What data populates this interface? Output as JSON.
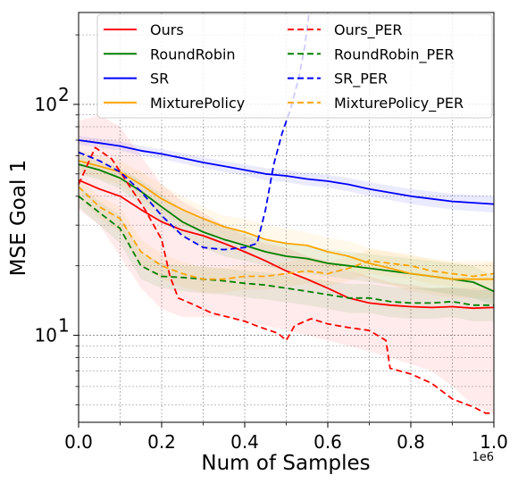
{
  "chart_data": {
    "type": "line",
    "xlabel": "Num of Samples",
    "ylabel": "MSE Goal 1",
    "x_offset_label": "1e6",
    "xlim": [
      0,
      1000000
    ],
    "ylim": [
      4.2,
      250
    ],
    "yscale": "log",
    "grid": true,
    "legend_position": "top",
    "x_ticks": [
      {
        "value": 0,
        "label": "0.0"
      },
      {
        "value": 200000,
        "label": "0.2"
      },
      {
        "value": 400000,
        "label": "0.4"
      },
      {
        "value": 600000,
        "label": "0.6"
      },
      {
        "value": 800000,
        "label": "0.8"
      },
      {
        "value": 1000000,
        "label": "1.0"
      }
    ],
    "y_ticks": [
      {
        "value": 10,
        "base": "10",
        "exp": "1"
      },
      {
        "value": 100,
        "base": "10",
        "exp": "2"
      }
    ],
    "series": [
      {
        "name": "Ours",
        "color": "#ff0000",
        "dash": "solid",
        "x": [
          0,
          50000,
          100000,
          150000,
          200000,
          250000,
          300000,
          350000,
          400000,
          450000,
          500000,
          550000,
          600000,
          650000,
          700000,
          750000,
          800000,
          850000,
          900000,
          950000,
          1000000
        ],
        "y": [
          47,
          43,
          40,
          35,
          31,
          28.5,
          27,
          25,
          23,
          21,
          19,
          17.5,
          16,
          14.5,
          13.8,
          13.5,
          13.3,
          13.2,
          13.3,
          13.1,
          13.2
        ],
        "band": {
          "color": "#ff0000",
          "lower": [
            35,
            30,
            22,
            16,
            13,
            12,
            12,
            12,
            11.5,
            11,
            10.5,
            10,
            9.5,
            9,
            8.5,
            8,
            7.5,
            7,
            6,
            5,
            4.6
          ],
          "upper": [
            85,
            90,
            80,
            60,
            45,
            38,
            34,
            30,
            27,
            25,
            24,
            22,
            21,
            19,
            18,
            17,
            16.5,
            16,
            16,
            16,
            16
          ]
        }
      },
      {
        "name": "RoundRobin",
        "color": "#008000",
        "dash": "solid",
        "x": [
          0,
          50000,
          100000,
          150000,
          200000,
          250000,
          300000,
          350000,
          400000,
          450000,
          500000,
          550000,
          600000,
          650000,
          700000,
          750000,
          800000,
          850000,
          900000,
          950000,
          1000000
        ],
        "y": [
          55,
          52,
          48,
          42,
          36,
          31,
          28,
          26,
          24.5,
          23,
          22,
          21.5,
          20.5,
          20,
          19.5,
          19,
          18.5,
          18,
          17.5,
          17,
          15.5
        ],
        "band": {
          "color": "#008000",
          "lower": [
            50,
            47,
            43,
            37,
            31,
            27,
            24,
            22,
            21,
            20,
            19,
            18.5,
            18,
            17.5,
            17,
            16.5,
            16,
            15.5,
            15,
            14.5,
            13.5
          ],
          "upper": [
            60,
            57,
            53,
            47,
            41,
            35,
            32,
            30,
            28,
            26,
            25,
            24.5,
            23.5,
            23,
            22.5,
            22,
            21.5,
            21,
            20.5,
            20,
            18
          ]
        }
      },
      {
        "name": "SR",
        "color": "#0000ff",
        "dash": "solid",
        "x": [
          0,
          50000,
          100000,
          150000,
          200000,
          250000,
          300000,
          350000,
          400000,
          450000,
          500000,
          550000,
          600000,
          650000,
          700000,
          750000,
          800000,
          850000,
          900000,
          950000,
          1000000
        ],
        "y": [
          70,
          68,
          66,
          63,
          61,
          58.5,
          56,
          54,
          52,
          50,
          49,
          47.5,
          46.5,
          45,
          43,
          41.5,
          40,
          39,
          38,
          37.5,
          37
        ],
        "band": {
          "color": "#0000ff",
          "lower": [
            67,
            65,
            63,
            60,
            58,
            55.5,
            53,
            51,
            49,
            47,
            46,
            44.5,
            43.5,
            42,
            40,
            38.5,
            37,
            36,
            35,
            34.5,
            34
          ],
          "upper": [
            73,
            71,
            69,
            66,
            64,
            61.5,
            59,
            57,
            55,
            53,
            52,
            50.5,
            49.5,
            48,
            46,
            44.5,
            43,
            42,
            41,
            40.5,
            40
          ]
        }
      },
      {
        "name": "MixturePolicy",
        "color": "#ffa500",
        "dash": "solid",
        "x": [
          0,
          50000,
          100000,
          150000,
          200000,
          250000,
          300000,
          350000,
          400000,
          450000,
          500000,
          550000,
          600000,
          650000,
          700000,
          750000,
          800000,
          850000,
          900000,
          950000,
          1000000
        ],
        "y": [
          57,
          54,
          51,
          45,
          39,
          35,
          32,
          29.5,
          28,
          26,
          25,
          24.5,
          23,
          22,
          20.5,
          19.5,
          18.5,
          18,
          17.5,
          17.5,
          17.5
        ],
        "band": {
          "color": "#ffa500",
          "lower": [
            51,
            48,
            45,
            39,
            34,
            30,
            28,
            26,
            24,
            22.5,
            21.5,
            21,
            20,
            19,
            17.5,
            16.5,
            15.5,
            15,
            14.5,
            14.5,
            14.5
          ],
          "upper": [
            63,
            60,
            57,
            51,
            45,
            40,
            36,
            33,
            32,
            30,
            29,
            28,
            26.5,
            25.5,
            24,
            23,
            22,
            21.5,
            21,
            21,
            21
          ]
        }
      },
      {
        "name": "Ours_PER",
        "color": "#ff0000",
        "dash": "dashed",
        "x": [
          0,
          40000,
          80000,
          120000,
          160000,
          200000,
          220000,
          240000,
          280000,
          320000,
          360000,
          400000,
          440000,
          480000,
          500000,
          520000,
          560000,
          600000,
          650000,
          700000,
          740000,
          750000,
          800000,
          850000,
          900000,
          950000,
          980000,
          1000000
        ],
        "y": [
          45,
          65,
          58,
          45,
          35,
          26,
          18,
          14.5,
          13.5,
          12.5,
          12,
          11.5,
          10.8,
          10.2,
          9.5,
          11,
          11.8,
          11.2,
          10.8,
          10.5,
          9.5,
          7.2,
          6.8,
          6.2,
          5.3,
          4.9,
          4.6,
          4.6
        ],
        "band": null
      },
      {
        "name": "RoundRobin_PER",
        "color": "#008000",
        "dash": "dashed",
        "x": [
          0,
          50000,
          100000,
          150000,
          200000,
          250000,
          300000,
          350000,
          400000,
          450000,
          500000,
          550000,
          600000,
          650000,
          700000,
          750000,
          800000,
          850000,
          900000,
          950000,
          1000000
        ],
        "y": [
          40,
          34,
          29,
          20,
          18,
          17.8,
          17.5,
          17.2,
          16.8,
          16.5,
          16,
          15.5,
          15,
          14.5,
          14.5,
          14,
          13.8,
          13.8,
          14,
          13.5,
          13.5
        ],
        "band": {
          "color": "#008000",
          "lower": [
            36,
            30,
            25,
            17.5,
            16,
            15.5,
            15.2,
            15,
            14.6,
            14.3,
            13.9,
            13.5,
            13,
            12.5,
            12.5,
            12,
            11.8,
            11.8,
            12,
            11.5,
            11.5
          ],
          "upper": [
            44,
            38,
            33,
            23,
            20.5,
            20,
            19.8,
            19.5,
            19,
            18.7,
            18.2,
            17.7,
            17.2,
            16.7,
            16.7,
            16.2,
            16,
            16,
            16.2,
            15.7,
            15.7
          ]
        }
      },
      {
        "name": "SR_PER",
        "color": "#0000ff",
        "dash": "dashed",
        "x": [
          0,
          50000,
          100000,
          150000,
          200000,
          250000,
          300000,
          350000,
          400000,
          430000,
          450000,
          470000,
          490000,
          510000,
          530000,
          545000,
          555000
        ],
        "y": [
          62,
          57,
          51,
          42,
          33,
          27,
          24,
          23.5,
          24,
          25,
          35,
          55,
          75,
          95,
          130,
          180,
          250
        ],
        "band": null
      },
      {
        "name": "MixturePolicy_PER",
        "color": "#ffa500",
        "dash": "dashed",
        "x": [
          0,
          50000,
          100000,
          150000,
          200000,
          250000,
          300000,
          350000,
          400000,
          450000,
          500000,
          550000,
          600000,
          650000,
          700000,
          750000,
          800000,
          850000,
          900000,
          950000,
          1000000
        ],
        "y": [
          44,
          36,
          32,
          23,
          20,
          18.5,
          17.5,
          17.5,
          18,
          18,
          18.5,
          19,
          18.5,
          19.5,
          21,
          20.5,
          20,
          19,
          18.5,
          18,
          18.5
        ],
        "band": {
          "color": "#ffa500",
          "lower": [
            40,
            32,
            28,
            20,
            17.5,
            16.2,
            15.3,
            15.3,
            15.8,
            15.8,
            16.3,
            16.7,
            16.3,
            17.2,
            18.5,
            18,
            17.5,
            16.7,
            16.3,
            15.8,
            16.3
          ],
          "upper": [
            48,
            40,
            36,
            26,
            22.5,
            20.8,
            19.7,
            19.7,
            20.2,
            20.2,
            20.7,
            21.3,
            20.7,
            21.8,
            23.5,
            23,
            22.5,
            21.3,
            20.7,
            20.2,
            20.7
          ]
        }
      }
    ]
  }
}
